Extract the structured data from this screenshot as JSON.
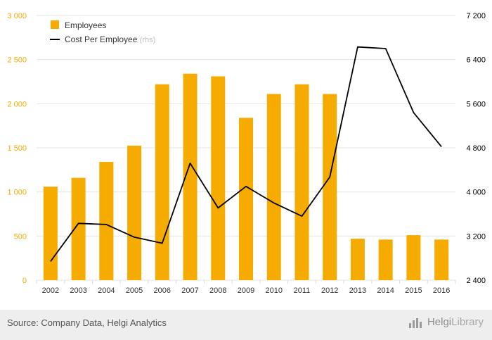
{
  "chart_data": {
    "type": "bar",
    "categories": [
      "2002",
      "2003",
      "2004",
      "2005",
      "2006",
      "2007",
      "2008",
      "2009",
      "2010",
      "2011",
      "2012",
      "2013",
      "2014",
      "2015",
      "2016"
    ],
    "series": [
      {
        "name": "Employees",
        "type": "bar",
        "axis": "left",
        "color": "#f5ab00",
        "values": [
          1060,
          1160,
          1340,
          1525,
          2220,
          2340,
          2310,
          1840,
          2110,
          2220,
          2110,
          470,
          460,
          510,
          460
        ]
      },
      {
        "name": "Cost Per Employee",
        "label_suffix": "(rhs)",
        "type": "line",
        "axis": "right",
        "color": "#000000",
        "values": [
          2740,
          3430,
          3410,
          3180,
          3070,
          4520,
          3710,
          4100,
          3800,
          3560,
          4270,
          6630,
          6600,
          5440,
          4820
        ]
      }
    ],
    "y_left": {
      "lim": [
        0,
        3000
      ],
      "ticks": [
        0,
        500,
        1000,
        1500,
        2000,
        2500,
        3000
      ],
      "tick_labels": [
        "0",
        "500",
        "1 000",
        "1 500",
        "2 000",
        "2 500",
        "3 000"
      ],
      "color": "#f5ab00"
    },
    "y_right": {
      "lim": [
        2400,
        7200
      ],
      "ticks": [
        2400,
        3200,
        4000,
        4800,
        5600,
        6400,
        7200
      ],
      "tick_labels": [
        "2 400",
        "3 200",
        "4 000",
        "4 800",
        "5 600",
        "6 400",
        "7 200"
      ],
      "color": "#000000"
    },
    "grid": true,
    "legend_position": "top-left"
  },
  "footer": {
    "source": "Source: Company Data, Helgi Analytics",
    "brand_part1": "Helgi",
    "brand_part2": "Library",
    "brand_icon": "bar-chart-icon"
  }
}
